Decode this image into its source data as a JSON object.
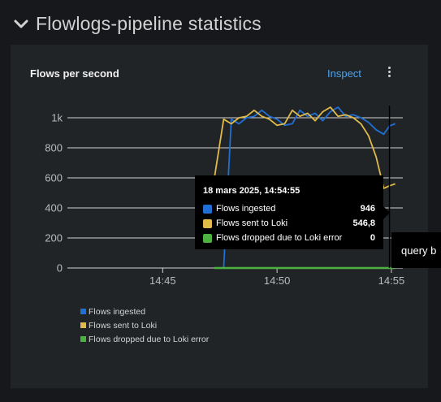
{
  "section": {
    "title": "Flowlogs-pipeline statistics"
  },
  "panel": {
    "title": "Flows per second",
    "inspect_label": "Inspect"
  },
  "colors": {
    "ingested": "#1f6fd4",
    "sent": "#e0bb4a",
    "dropped": "#4cb140",
    "grid": "#d2d2d2",
    "axis_text": "#b8bbbe"
  },
  "chart_data": {
    "type": "line",
    "y_ticks": [
      "0",
      "200",
      "400",
      "600",
      "800",
      "1k"
    ],
    "x_ticks": [
      "14:45",
      "14:50",
      "14:55"
    ],
    "ylim": [
      0,
      1000
    ],
    "xlim": [
      "14:40:50",
      "14:55:30"
    ],
    "series": [
      {
        "name": "Flows ingested",
        "color": "#1f6fd4",
        "x": [
          "14:47:40",
          "14:48:00",
          "14:48:20",
          "14:48:40",
          "14:49:00",
          "14:49:20",
          "14:49:40",
          "14:50:00",
          "14:50:20",
          "14:50:40",
          "14:51:00",
          "14:51:20",
          "14:51:40",
          "14:52:00",
          "14:52:20",
          "14:52:40",
          "14:53:00",
          "14:53:20",
          "14:53:40",
          "14:54:00",
          "14:54:20",
          "14:54:40",
          "14:54:55",
          "14:55:10"
        ],
        "y": [
          0,
          990,
          960,
          1000,
          1010,
          1050,
          1010,
          990,
          950,
          960,
          1050,
          1010,
          1030,
          980,
          1040,
          1070,
          1010,
          1020,
          1000,
          970,
          920,
          890,
          946,
          960
        ]
      },
      {
        "name": "Flows sent to Loki",
        "color": "#e0bb4a",
        "x": [
          "14:47:15",
          "14:47:40",
          "14:48:00",
          "14:48:20",
          "14:48:40",
          "14:49:00",
          "14:49:20",
          "14:49:40",
          "14:50:00",
          "14:50:20",
          "14:50:40",
          "14:51:00",
          "14:51:20",
          "14:51:40",
          "14:52:00",
          "14:52:20",
          "14:52:40",
          "14:53:00",
          "14:53:20",
          "14:53:40",
          "14:54:00",
          "14:54:20",
          "14:54:40",
          "14:54:55",
          "14:55:10"
        ],
        "y": [
          590,
          990,
          960,
          1000,
          1010,
          1050,
          1010,
          990,
          950,
          960,
          1050,
          1010,
          1030,
          980,
          1040,
          1070,
          1010,
          1020,
          1000,
          960,
          880,
          740,
          530,
          546.8,
          560
        ]
      },
      {
        "name": "Flows dropped due to Loki error",
        "color": "#4cb140",
        "x": [
          "14:47:15",
          "14:55:10"
        ],
        "y": [
          0,
          0
        ]
      }
    ]
  },
  "legend": [
    {
      "label": "Flows ingested",
      "color": "#1f6fd4"
    },
    {
      "label": "Flows sent to Loki",
      "color": "#e0bb4a"
    },
    {
      "label": "Flows dropped due to Loki error",
      "color": "#4cb140"
    }
  ],
  "tooltip": {
    "time": "18 mars 2025, 14:54:55",
    "rows": [
      {
        "label": "Flows ingested",
        "value": "946",
        "color": "#1f6fd4"
      },
      {
        "label": "Flows sent to Loki",
        "value": "546,8",
        "color": "#e0bb4a"
      },
      {
        "label": "Flows dropped due to Loki error",
        "value": "0",
        "color": "#4cb140"
      }
    ]
  },
  "query_tooltip": {
    "text": "query b"
  }
}
